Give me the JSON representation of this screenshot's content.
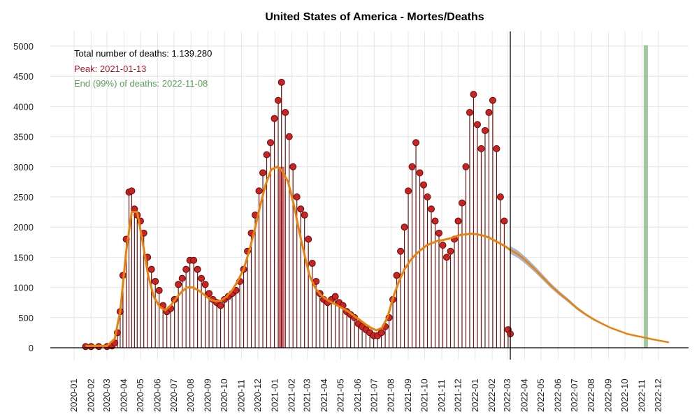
{
  "chart_data": {
    "type": "line",
    "title": "United States of America - Mortes/Deaths",
    "xlabel": "",
    "ylabel": "",
    "ylim": [
      0,
      5000
    ],
    "yticks": [
      0,
      500,
      1000,
      1500,
      2000,
      2500,
      3000,
      3500,
      4000,
      4500,
      5000
    ],
    "xticks": [
      "2020-01",
      "2020-02",
      "2020-03",
      "2020-04",
      "2020-05",
      "2020-06",
      "2020-07",
      "2020-08",
      "2020-09",
      "2020-10",
      "2020-11",
      "2020-12",
      "2021-01",
      "2021-02",
      "2021-03",
      "2021-04",
      "2021-05",
      "2021-06",
      "2021-07",
      "2021-08",
      "2021-09",
      "2021-10",
      "2021-11",
      "2021-12",
      "2022-01",
      "2022-02",
      "2022-03",
      "2022-04",
      "2022-05",
      "2022-06",
      "2022-07",
      "2022-08",
      "2022-09",
      "2022-10",
      "2022-11",
      "2022-12"
    ],
    "annotations": {
      "total": "Total number of deaths: 1.139.280",
      "peak": "Peak: 2021-01-13",
      "end": "End (99%) of deaths: 2022-11-08"
    },
    "markers": {
      "peak_date": "2021-01-13",
      "end_date": "2022-11-08",
      "last_observed_date": "2022-03-06"
    },
    "grid": true,
    "colors": {
      "points_fill": "#cc2222",
      "points_edge": "#5a0f0f",
      "stems": "#6a1414",
      "smooth": "#e8820c",
      "forecast_band": "#9aa8bf",
      "peak_band": "#c0383f",
      "end_band": "#88bb88",
      "peak_text": "#b2182b",
      "end_text": "#5aa05a"
    },
    "series": [
      {
        "name": "daily",
        "kind": "points",
        "x": [
          "2020-01-22",
          "2020-02-01",
          "2020-02-15",
          "2020-03-01",
          "2020-03-10",
          "2020-03-15",
          "2020-03-20",
          "2020-03-25",
          "2020-03-30",
          "2020-04-05",
          "2020-04-10",
          "2020-04-15",
          "2020-04-20",
          "2020-04-25",
          "2020-05-01",
          "2020-05-07",
          "2020-05-14",
          "2020-05-21",
          "2020-05-28",
          "2020-06-04",
          "2020-06-11",
          "2020-06-18",
          "2020-06-25",
          "2020-07-02",
          "2020-07-09",
          "2020-07-16",
          "2020-07-23",
          "2020-07-30",
          "2020-08-06",
          "2020-08-13",
          "2020-08-20",
          "2020-08-27",
          "2020-09-03",
          "2020-09-10",
          "2020-09-17",
          "2020-09-24",
          "2020-10-01",
          "2020-10-08",
          "2020-10-15",
          "2020-10-22",
          "2020-10-29",
          "2020-11-05",
          "2020-11-12",
          "2020-11-19",
          "2020-11-26",
          "2020-12-03",
          "2020-12-10",
          "2020-12-17",
          "2020-12-24",
          "2020-12-31",
          "2021-01-07",
          "2021-01-13",
          "2021-01-20",
          "2021-01-27",
          "2021-02-03",
          "2021-02-10",
          "2021-02-17",
          "2021-02-24",
          "2021-03-03",
          "2021-03-10",
          "2021-03-17",
          "2021-03-24",
          "2021-03-31",
          "2021-04-07",
          "2021-04-14",
          "2021-04-21",
          "2021-04-28",
          "2021-05-05",
          "2021-05-12",
          "2021-05-19",
          "2021-05-26",
          "2021-06-02",
          "2021-06-09",
          "2021-06-16",
          "2021-06-23",
          "2021-06-30",
          "2021-07-07",
          "2021-07-14",
          "2021-07-21",
          "2021-07-28",
          "2021-08-04",
          "2021-08-11",
          "2021-08-18",
          "2021-08-25",
          "2021-09-01",
          "2021-09-08",
          "2021-09-15",
          "2021-09-22",
          "2021-09-29",
          "2021-10-06",
          "2021-10-13",
          "2021-10-20",
          "2021-10-27",
          "2021-11-03",
          "2021-11-10",
          "2021-11-17",
          "2021-11-24",
          "2021-12-01",
          "2021-12-08",
          "2021-12-15",
          "2021-12-22",
          "2021-12-29",
          "2022-01-05",
          "2022-01-12",
          "2022-01-19",
          "2022-01-26",
          "2022-02-02",
          "2022-02-09",
          "2022-02-16",
          "2022-02-23",
          "2022-03-02",
          "2022-03-06"
        ],
        "values": [
          20,
          20,
          20,
          20,
          30,
          80,
          250,
          600,
          1200,
          1800,
          2580,
          2600,
          2300,
          2200,
          2100,
          1900,
          1500,
          1300,
          1100,
          950,
          700,
          600,
          650,
          800,
          1050,
          1150,
          1300,
          1450,
          1450,
          1300,
          1150,
          1050,
          900,
          800,
          750,
          700,
          800,
          850,
          900,
          950,
          1100,
          1300,
          1600,
          1900,
          2200,
          2600,
          2900,
          3200,
          3400,
          3800,
          4100,
          4400,
          3900,
          3500,
          3000,
          2500,
          2300,
          2200,
          1800,
          1400,
          1100,
          900,
          800,
          750,
          800,
          850,
          750,
          700,
          600,
          550,
          500,
          400,
          350,
          300,
          250,
          200,
          200,
          250,
          350,
          500,
          800,
          1200,
          1600,
          2000,
          2600,
          3000,
          3400,
          2900,
          2700,
          2500,
          2300,
          2100,
          1900,
          1700,
          1500,
          1600,
          1800,
          2100,
          2400,
          3000,
          3900,
          4200,
          3700,
          3300,
          3600,
          3900,
          4100,
          3300,
          2500,
          2100,
          300,
          230
        ]
      },
      {
        "name": "smoothed",
        "kind": "line",
        "x": [
          "2020-01-22",
          "2020-03-01",
          "2020-03-15",
          "2020-03-25",
          "2020-04-05",
          "2020-04-15",
          "2020-04-25",
          "2020-05-05",
          "2020-05-15",
          "2020-05-25",
          "2020-06-05",
          "2020-06-15",
          "2020-06-25",
          "2020-07-05",
          "2020-07-15",
          "2020-07-25",
          "2020-08-05",
          "2020-08-15",
          "2020-08-25",
          "2020-09-05",
          "2020-09-15",
          "2020-09-25",
          "2020-10-05",
          "2020-10-15",
          "2020-10-25",
          "2020-11-05",
          "2020-11-15",
          "2020-11-25",
          "2020-12-05",
          "2020-12-15",
          "2020-12-25",
          "2021-01-05",
          "2021-01-13",
          "2021-01-25",
          "2021-02-05",
          "2021-02-15",
          "2021-02-25",
          "2021-03-05",
          "2021-03-15",
          "2021-03-25",
          "2021-04-05",
          "2021-04-15",
          "2021-04-25",
          "2021-05-05",
          "2021-05-15",
          "2021-05-25",
          "2021-06-05",
          "2021-06-15",
          "2021-06-25",
          "2021-07-05",
          "2021-07-15",
          "2021-07-25",
          "2021-08-05",
          "2021-08-15",
          "2021-08-25",
          "2021-09-05",
          "2021-09-15",
          "2021-09-25",
          "2021-10-05",
          "2021-10-15",
          "2021-10-25",
          "2021-11-05",
          "2021-11-15",
          "2021-11-25",
          "2021-12-05",
          "2021-12-15",
          "2021-12-25",
          "2022-01-05",
          "2022-01-15",
          "2022-01-25",
          "2022-02-05",
          "2022-02-15",
          "2022-02-25",
          "2022-03-06"
        ],
        "values": [
          30,
          30,
          150,
          600,
          1600,
          2250,
          2250,
          1750,
          1200,
          850,
          680,
          620,
          700,
          820,
          930,
          1000,
          1000,
          950,
          880,
          800,
          770,
          780,
          850,
          950,
          1100,
          1300,
          1600,
          1950,
          2350,
          2700,
          2950,
          3000,
          2950,
          2750,
          2350,
          1900,
          1500,
          1200,
          1000,
          880,
          800,
          750,
          700,
          650,
          600,
          530,
          460,
          390,
          330,
          290,
          330,
          500,
          850,
          1100,
          1300,
          1450,
          1550,
          1630,
          1700,
          1740,
          1770,
          1790,
          1810,
          1840,
          1870,
          1880,
          1890,
          1880,
          1860,
          1830,
          1780,
          1730,
          1680,
          1620
        ]
      },
      {
        "name": "forecast",
        "kind": "band",
        "x": [
          "2022-03-06",
          "2022-03-20",
          "2022-04-05",
          "2022-04-20",
          "2022-05-05",
          "2022-05-20",
          "2022-06-05",
          "2022-06-20",
          "2022-07-05",
          "2022-07-20",
          "2022-08-05",
          "2022-08-20",
          "2022-09-05",
          "2022-09-20",
          "2022-10-05",
          "2022-10-20",
          "2022-11-05",
          "2022-11-20",
          "2022-12-05",
          "2022-12-20"
        ],
        "values": [
          1620,
          1550,
          1430,
          1300,
          1160,
          1020,
          890,
          780,
          660,
          560,
          470,
          400,
          330,
          280,
          230,
          200,
          170,
          140,
          115,
          90
        ]
      }
    ]
  }
}
